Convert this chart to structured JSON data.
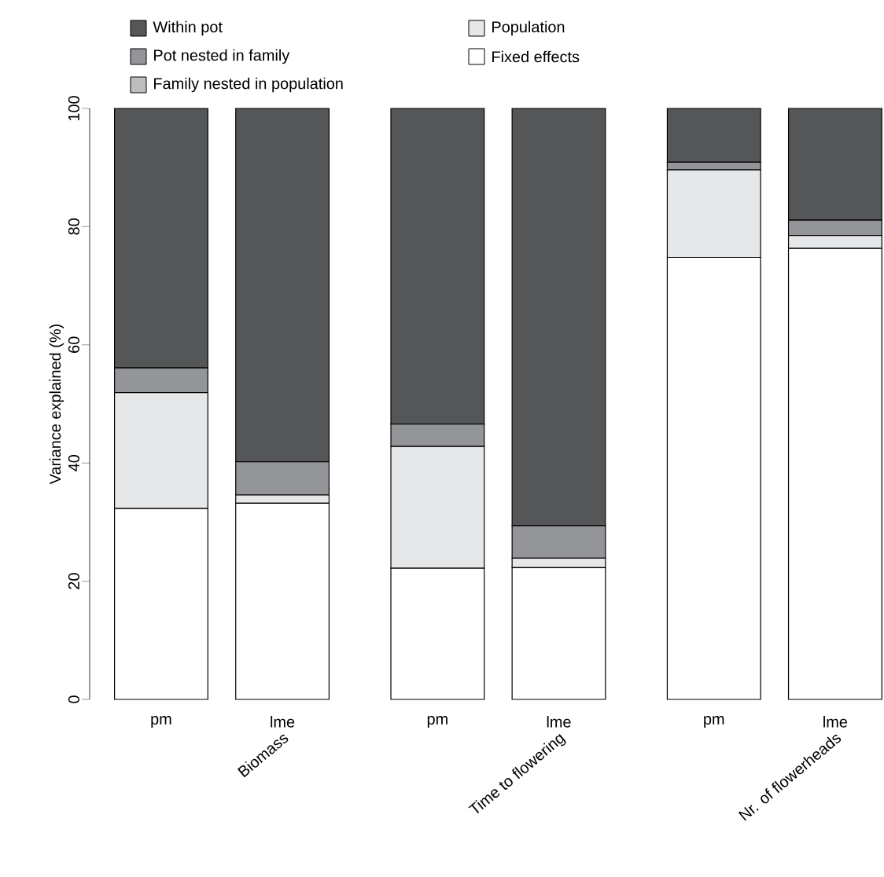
{
  "chart_data": {
    "type": "bar",
    "stacked": true,
    "ylabel": "Variance explained (%)",
    "categories": [
      "pm",
      "lme",
      "pm",
      "lme",
      "pm",
      "lme"
    ],
    "series": [
      {
        "name": "Fixed effects",
        "color": "#ffffff",
        "values": [
          32.3,
          33.2,
          22.2,
          22.3,
          74.8,
          76.3
        ]
      },
      {
        "name": "Population",
        "color": "#e6e7e8",
        "values": [
          19.6,
          1.4,
          20.6,
          1.6,
          14.8,
          2.2
        ]
      },
      {
        "name": "Family nested in population",
        "color": "#bcbec0",
        "values": [
          0,
          0,
          0,
          0,
          0,
          0
        ]
      },
      {
        "name": "Pot nested in family",
        "color": "#939598",
        "values": [
          4.2,
          5.6,
          3.8,
          5.5,
          1.3,
          2.6
        ]
      },
      {
        "name": "Within pot",
        "color": "#555658",
        "values": [
          43.9,
          59.8,
          53.4,
          70.6,
          9.1,
          18.9
        ]
      }
    ],
    "ylim": [
      0,
      100
    ],
    "yticks": [
      0,
      20,
      40,
      60,
      80,
      100
    ],
    "grid": false,
    "legend": "top",
    "annotations": [
      "Biomass",
      "Time to flowering",
      "Nr. of flowerheads"
    ]
  }
}
